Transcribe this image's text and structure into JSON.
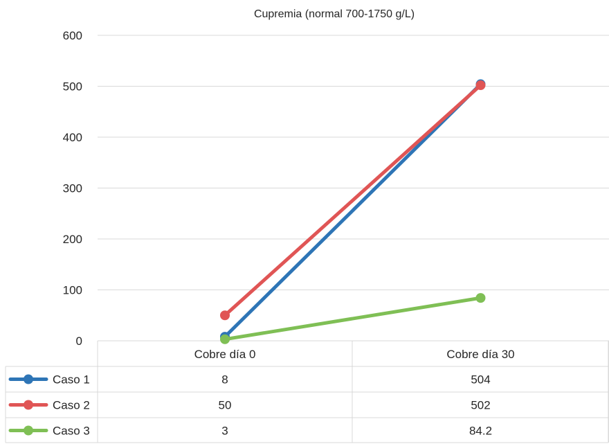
{
  "chart_data": {
    "type": "line",
    "title": "Cupremia (normal 700-1750 g/L)",
    "categories": [
      "Cobre día 0",
      "Cobre día 30"
    ],
    "ylim": [
      0,
      600
    ],
    "yticks": [
      "0",
      "100",
      "200",
      "300",
      "400",
      "500",
      "600"
    ],
    "grid": true,
    "legend": "data-table",
    "series": [
      {
        "name": "Caso 1",
        "values": [
          8,
          504
        ],
        "labels": [
          "8",
          "504"
        ],
        "color": "#2e75b6"
      },
      {
        "name": "Caso 2",
        "values": [
          50,
          502
        ],
        "labels": [
          "50",
          "502"
        ],
        "color": "#e05555"
      },
      {
        "name": "Caso 3",
        "values": [
          3,
          84.2
        ],
        "labels": [
          "3",
          "84.2"
        ],
        "color": "#7fbf55"
      }
    ]
  }
}
